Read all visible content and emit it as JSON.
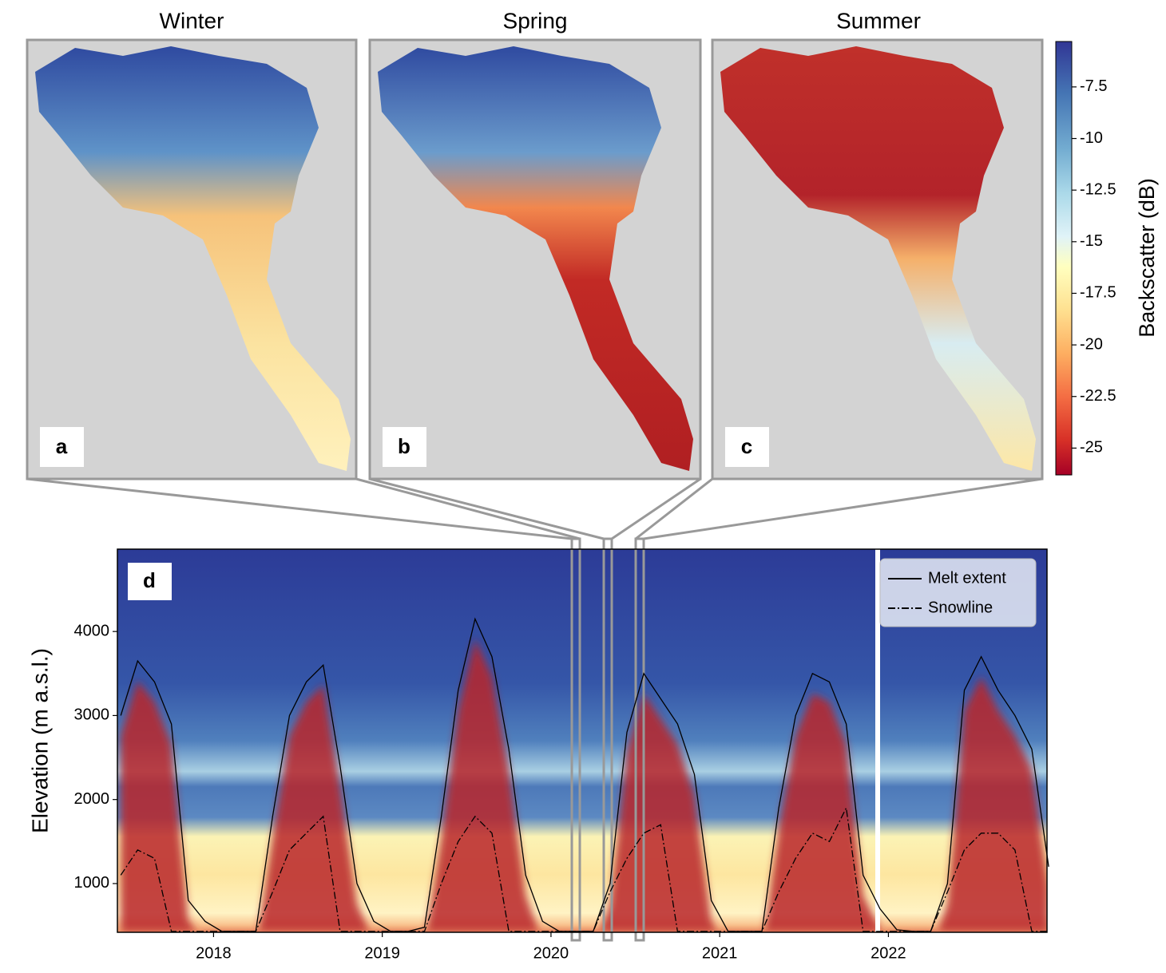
{
  "panels": [
    {
      "title": "Winter",
      "label": "a"
    },
    {
      "title": "Spring",
      "label": "b"
    },
    {
      "title": "Summer",
      "label": "c"
    }
  ],
  "colorbar": {
    "label": "Backscatter (dB)",
    "lim": [
      -26.3,
      -5.3
    ],
    "ticks": [
      -7.5,
      -10,
      -12.5,
      -15,
      -17.5,
      -20,
      -22.5,
      -25
    ]
  },
  "chart_data": {
    "type": "line",
    "panel_label": "d",
    "ylabel": "Elevation (m a.s.l.)",
    "x": [
      2017.45,
      2017.55,
      2017.65,
      2017.75,
      2017.85,
      2017.95,
      2018.05,
      2018.15,
      2018.25,
      2018.35,
      2018.45,
      2018.55,
      2018.65,
      2018.75,
      2018.85,
      2018.95,
      2019.05,
      2019.15,
      2019.25,
      2019.35,
      2019.45,
      2019.55,
      2019.65,
      2019.75,
      2019.85,
      2019.95,
      2020.05,
      2020.15,
      2020.25,
      2020.35,
      2020.45,
      2020.55,
      2020.65,
      2020.75,
      2020.85,
      2020.95,
      2021.05,
      2021.15,
      2021.25,
      2021.35,
      2021.45,
      2021.55,
      2021.65,
      2021.75,
      2021.85,
      2021.95,
      2022.05,
      2022.15,
      2022.25,
      2022.35,
      2022.45,
      2022.55,
      2022.65,
      2022.75,
      2022.85,
      2022.95
    ],
    "series": [
      {
        "name": "Melt extent",
        "color": "#000000",
        "dash": "solid",
        "values": [
          3000,
          3650,
          3400,
          2900,
          800,
          550,
          430,
          430,
          430,
          1800,
          3000,
          3400,
          3600,
          2400,
          1000,
          550,
          430,
          430,
          480,
          1800,
          3300,
          4150,
          3700,
          2600,
          1100,
          550,
          430,
          430,
          430,
          1000,
          2800,
          3500,
          3200,
          2900,
          2300,
          800,
          430,
          430,
          430,
          1900,
          3000,
          3500,
          3400,
          2900,
          1100,
          700,
          450,
          430,
          430,
          1000,
          3300,
          3700,
          3300,
          3000,
          2600,
          1200
        ]
      },
      {
        "name": "Snowline",
        "color": "#000000",
        "dash": "dashdot",
        "values": [
          1100,
          1400,
          1300,
          430,
          430,
          430,
          430,
          430,
          430,
          900,
          1400,
          1600,
          1800,
          430,
          430,
          430,
          430,
          430,
          430,
          1000,
          1500,
          1800,
          1600,
          430,
          430,
          430,
          430,
          430,
          430,
          900,
          1300,
          1600,
          1700,
          430,
          430,
          430,
          430,
          430,
          430,
          900,
          1300,
          1600,
          1500,
          1900,
          430,
          430,
          430,
          430,
          430,
          900,
          1400,
          1600,
          1600,
          1400,
          430,
          430
        ]
      }
    ],
    "xlim": [
      2017.43,
      2022.94
    ],
    "xticks": [
      2018,
      2019,
      2020,
      2021,
      2022
    ],
    "ylim": [
      420,
      4980
    ],
    "yticks": [
      1000,
      2000,
      3000,
      4000
    ],
    "legend": "upper right"
  }
}
